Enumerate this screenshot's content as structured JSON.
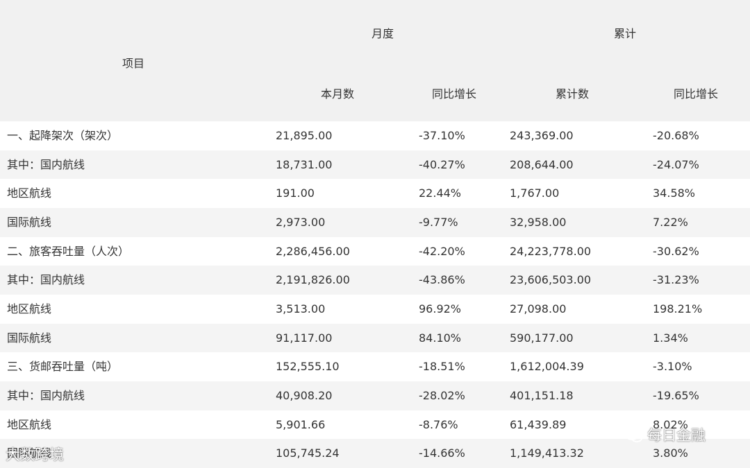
{
  "table": {
    "header": {
      "item": "项目",
      "monthly": "月度",
      "cumulative": "累计",
      "this_month": "本月数",
      "yoy_monthly": "同比增长",
      "cumulative_count": "累计数",
      "yoy_cumulative": "同比增长"
    },
    "rows": [
      [
        "一、起降架次（架次）",
        "21,895.00",
        "-37.10%",
        "243,369.00",
        "-20.68%"
      ],
      [
        "其中：国内航线",
        "18,731.00",
        "-40.27%",
        "208,644.00",
        "-24.07%"
      ],
      [
        "地区航线",
        "191.00",
        "22.44%",
        "1,767.00",
        "34.58%"
      ],
      [
        "国际航线",
        "2,973.00",
        "-9.77%",
        "32,958.00",
        "7.22%"
      ],
      [
        "二、旅客吞吐量（人次）",
        "2,286,456.00",
        "-42.20%",
        "24,223,778.00",
        "-30.62%"
      ],
      [
        "其中：国内航线",
        "2,191,826.00",
        "-43.86%",
        "23,606,503.00",
        "-31.23%"
      ],
      [
        "地区航线",
        "3,513.00",
        "96.92%",
        "27,098.00",
        "198.21%"
      ],
      [
        "国际航线",
        "91,117.00",
        "84.10%",
        "590,177.00",
        "1.34%"
      ],
      [
        "三、货邮吞吐量（吨）",
        "152,555.10",
        "-18.51%",
        "1,612,004.39",
        "-3.10%"
      ],
      [
        "其中：国内航线",
        "40,908.20",
        "-28.02%",
        "401,151.18",
        "-19.65%"
      ],
      [
        "地区航线",
        "5,901.66",
        "-8.76%",
        "61,439.89",
        "8.02%"
      ],
      [
        "国际航线",
        "105,745.24",
        "-14.66%",
        "1,149,413.32",
        "3.80%"
      ]
    ]
  },
  "watermarks": {
    "left": "大数跨境",
    "right": "每日金融"
  },
  "colors": {
    "header_bg": "#f1f1f1",
    "alt_row_bg": "#f4f4f4",
    "text": "#333333"
  }
}
